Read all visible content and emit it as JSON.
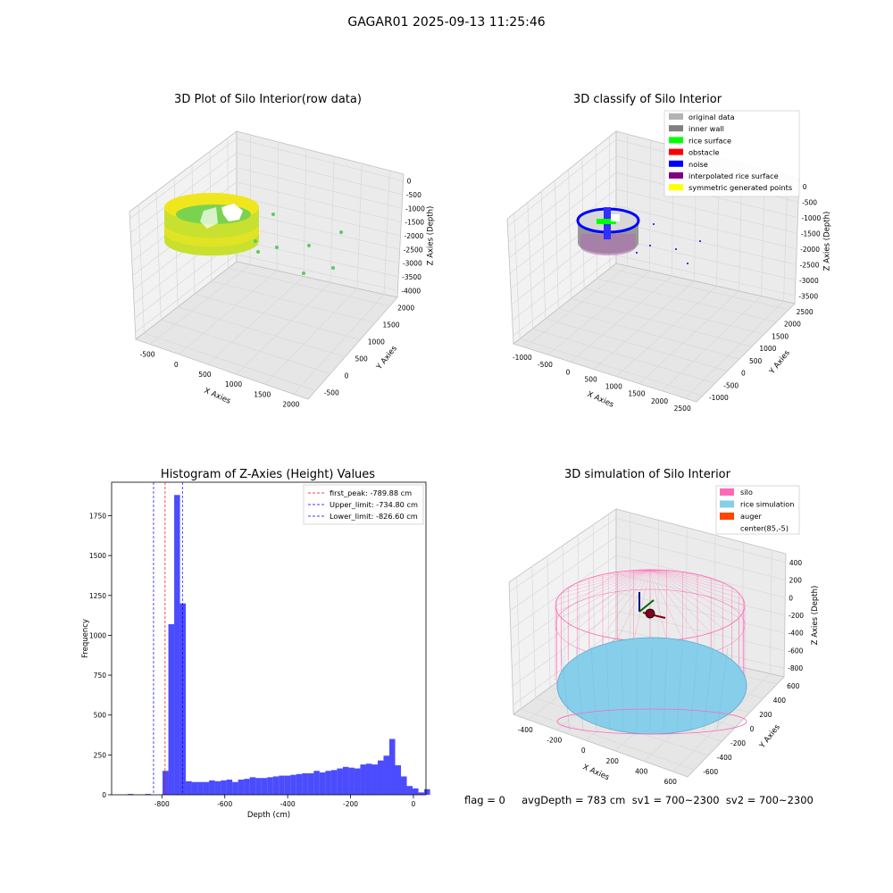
{
  "suptitle": "GAGAR01 2025-09-13 11:25:46",
  "panels": {
    "raw": {
      "title": "3D Plot of Silo Interior(row data)",
      "xlabel": "X Axies",
      "ylabel": "Y Axies",
      "zlabel": "Z Axies (Depth)",
      "xticks": [
        "-500",
        "0",
        "500",
        "1000",
        "1500",
        "2000"
      ],
      "yticks": [
        "-500",
        "0",
        "500",
        "1000",
        "1500",
        "2000"
      ],
      "zticks": [
        "0",
        "-500",
        "-1000",
        "-1500",
        "-2000",
        "-2500",
        "-3000",
        "-3500",
        "-4000"
      ],
      "colors": {
        "ring_top": "#f0e61e",
        "ring_body": "#c8e030",
        "inner": "#7ad34f",
        "points": "#5ec962"
      }
    },
    "classify": {
      "title": "3D classify of Silo Interior",
      "xlabel": "X Axies",
      "ylabel": "Y Axies",
      "zlabel": "Z Axies (Depth)",
      "xticks": [
        "-1000",
        "-500",
        "0",
        "500",
        "1000",
        "1500",
        "2000",
        "2500"
      ],
      "yticks": [
        "-1000",
        "-500",
        "0",
        "500",
        "1000",
        "1500",
        "2000",
        "2500"
      ],
      "zticks": [
        "0",
        "-500",
        "-1000",
        "-1500",
        "-2000",
        "-2500",
        "-3000",
        "-3500"
      ],
      "legend": [
        {
          "label": "original data",
          "color": "#b3b3b3"
        },
        {
          "label": "inner wall",
          "color": "#808080"
        },
        {
          "label": "rice surface",
          "color": "#00ff00"
        },
        {
          "label": "obstacle",
          "color": "#ff0000"
        },
        {
          "label": "noise",
          "color": "#0000ff"
        },
        {
          "label": "interpolated rice surface",
          "color": "#800080"
        },
        {
          "label": "symmetric generated points",
          "color": "#ffff00"
        }
      ]
    },
    "sim": {
      "title": "3D simulation of Silo Interior",
      "xlabel": "X Axies",
      "ylabel": "Y Axies",
      "zlabel": "Z Axies (Depth)",
      "xticks": [
        "-400",
        "-200",
        "0",
        "200",
        "400",
        "600"
      ],
      "yticks": [
        "-600",
        "-400",
        "-200",
        "0",
        "200",
        "400",
        "600"
      ],
      "zticks": [
        "400",
        "200",
        "0",
        "-200",
        "-400",
        "-600",
        "-800"
      ],
      "legend": [
        {
          "label": "silo",
          "color": "#ff69b4"
        },
        {
          "label": "rice simulation",
          "color": "#87ceeb"
        },
        {
          "label": "auger",
          "color": "#ff4500"
        },
        {
          "label": "center(85,-5)",
          "color": ""
        }
      ]
    }
  },
  "chart_data": {
    "type": "bar",
    "title": "Histogram of Z-Axies (Height) Values",
    "xlabel": "Depth (cm)",
    "ylabel": "Frequency",
    "xlim": [
      -960,
      40
    ],
    "ylim": [
      0,
      1960
    ],
    "xticks": [
      -800,
      -600,
      -400,
      -200,
      0
    ],
    "yticks": [
      0,
      250,
      500,
      750,
      1000,
      1250,
      1500,
      1750
    ],
    "bin_width": 18.5,
    "bin_start": -909,
    "values": [
      5,
      0,
      0,
      5,
      0,
      0,
      150,
      1070,
      1880,
      1200,
      85,
      80,
      80,
      80,
      90,
      85,
      90,
      95,
      80,
      95,
      100,
      110,
      105,
      105,
      110,
      115,
      120,
      120,
      125,
      130,
      135,
      135,
      150,
      140,
      150,
      155,
      165,
      175,
      170,
      165,
      190,
      195,
      190,
      215,
      245,
      350,
      185,
      115,
      55,
      40,
      15,
      35
    ],
    "bar_color": "#0000ff",
    "lines": [
      {
        "label": "first_peak: -789.88 cm",
        "x": -789.88,
        "color": "#ff0000"
      },
      {
        "label": "Upper_limit: -734.80 cm",
        "x": -734.8,
        "color": "#0000ff"
      },
      {
        "label": "Lower_limit: -826.60 cm",
        "x": -826.6,
        "color": "#0000ff"
      }
    ],
    "legend_position": "top-right"
  },
  "status": "flag = 0     avgDepth = 783 cm  sv1 = 700~2300  sv2 = 700~2300"
}
